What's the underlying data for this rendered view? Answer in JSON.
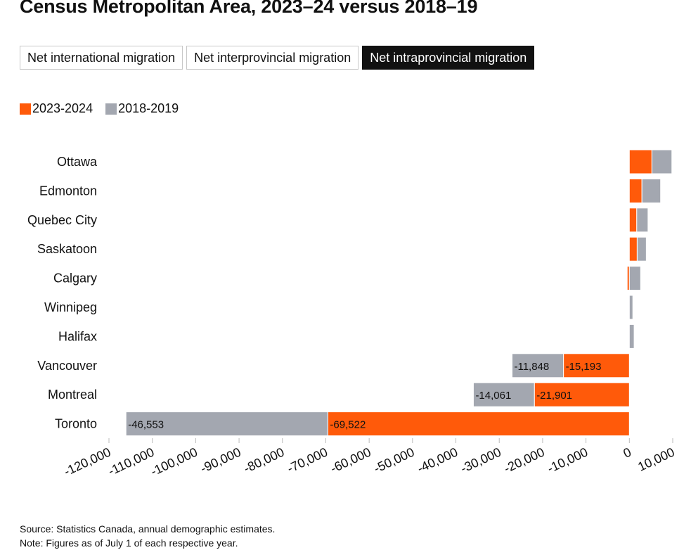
{
  "title": "Census Metropolitan Area, 2023–24 versus 2018–19",
  "tabs": [
    {
      "label": "Net international migration",
      "active": false
    },
    {
      "label": "Net interprovincial migration",
      "active": false
    },
    {
      "label": "Net intraprovincial migration",
      "active": true
    }
  ],
  "colors": {
    "series_2023": "#ff5a0a",
    "series_2018": "#a3a7b0"
  },
  "footnotes": {
    "source": "Source: Statistics Canada, annual demographic estimates.",
    "note": "Note: Figures as of July 1 of each respective year."
  },
  "chart_data": {
    "type": "bar",
    "orientation": "horizontal",
    "stacked": true,
    "categories": [
      "Ottawa",
      "Edmonton",
      "Quebec City",
      "Saskatoon",
      "Calgary",
      "Winnipeg",
      "Halifax",
      "Vancouver",
      "Montreal",
      "Toronto"
    ],
    "series": [
      {
        "name": "2023-2024",
        "values": [
          5200,
          2900,
          1700,
          1800,
          -500,
          -100,
          -100,
          -15193,
          -21901,
          -69522
        ]
      },
      {
        "name": "2018-2019",
        "values": [
          4600,
          4300,
          2600,
          2100,
          2600,
          800,
          1100,
          -11848,
          -14061,
          -46553
        ]
      }
    ],
    "data_labels": {
      "Vancouver": [
        "-15,193",
        "-11,848"
      ],
      "Montreal": [
        "-21,901",
        "-14,061"
      ],
      "Toronto": [
        "-69,522",
        "-46,553"
      ]
    },
    "xlim": [
      -120000,
      10000
    ],
    "xticks": [
      -120000,
      -110000,
      -100000,
      -90000,
      -80000,
      -70000,
      -60000,
      -50000,
      -40000,
      -30000,
      -20000,
      -10000,
      0,
      10000
    ],
    "xtick_labels": [
      "-120,000",
      "-110,000",
      "-100,000",
      "-90,000",
      "-80,000",
      "-70,000",
      "-60,000",
      "-50,000",
      "-40,000",
      "-30,000",
      "-20,000",
      "-10,000",
      "0",
      "10,000"
    ],
    "legend": "top-left",
    "grid": false
  }
}
